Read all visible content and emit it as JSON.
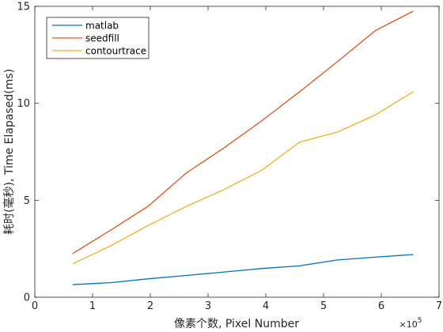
{
  "chart_data": {
    "type": "line",
    "title": "",
    "xlabel": "像素个数, Pixel Number",
    "ylabel": "耗时(毫秒), Time Elapased(ms)",
    "x_multiplier_label": "×10",
    "x_multiplier_exponent": "5",
    "xlim": [
      0,
      7
    ],
    "ylim": [
      0,
      15
    ],
    "xticks": [
      "0",
      "1",
      "2",
      "3",
      "4",
      "5",
      "6",
      "7"
    ],
    "yticks": [
      "0",
      "5",
      "10",
      "15"
    ],
    "xtick_values": [
      0,
      1,
      2,
      3,
      4,
      5,
      6,
      7
    ],
    "ytick_values": [
      0,
      5,
      10,
      15
    ],
    "grid": false,
    "legend_position": "top-left",
    "x": [
      0.655,
      1.311,
      1.966,
      2.621,
      3.277,
      3.932,
      4.588,
      5.243,
      5.898,
      6.554
    ],
    "series": [
      {
        "name": "matlab",
        "color": "#0072BD",
        "values": [
          0.65,
          0.75,
          0.95,
          1.12,
          1.3,
          1.48,
          1.62,
          1.92,
          2.07,
          2.2
        ]
      },
      {
        "name": "seedfill",
        "color": "#D95319",
        "values": [
          2.25,
          3.45,
          4.7,
          6.4,
          7.7,
          9.1,
          10.6,
          12.15,
          13.75,
          14.75
        ]
      },
      {
        "name": "contourtrace",
        "color": "#EDB120",
        "values": [
          1.72,
          2.65,
          3.7,
          4.68,
          5.55,
          6.55,
          8.0,
          8.52,
          9.4,
          10.6
        ]
      }
    ]
  }
}
